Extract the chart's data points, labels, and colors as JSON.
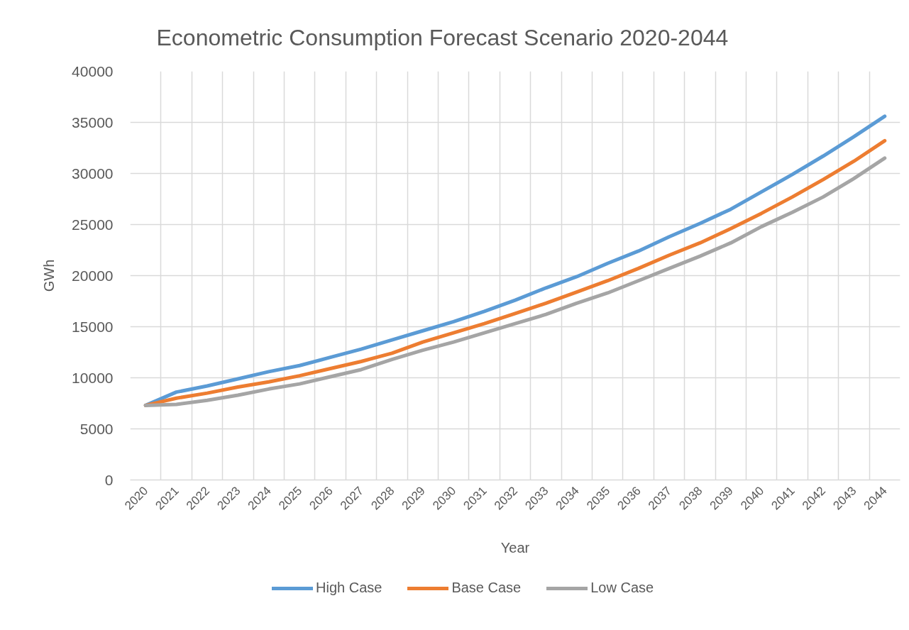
{
  "chart_data": {
    "type": "line",
    "title": "Econometric Consumption Forecast Scenario 2020-2044",
    "xlabel": "Year",
    "ylabel": "GWh",
    "categories": [
      "2020",
      "2021",
      "2022",
      "2023",
      "2024",
      "2025",
      "2026",
      "2027",
      "2028",
      "2029",
      "2030",
      "2031",
      "2032",
      "2033",
      "2034",
      "2035",
      "2036",
      "2037",
      "2038",
      "2039",
      "2040",
      "2041",
      "2042",
      "2043",
      "2044"
    ],
    "series": [
      {
        "name": "High Case",
        "color": "#5b9bd5",
        "values": [
          7300,
          8600,
          9200,
          9900,
          10600,
          11200,
          12000,
          12800,
          13700,
          14600,
          15500,
          16500,
          17600,
          18800,
          19900,
          21200,
          22400,
          23800,
          25100,
          26500,
          28200,
          29900,
          31700,
          33600,
          35600
        ]
      },
      {
        "name": "Base Case",
        "color": "#ed7d31",
        "values": [
          7300,
          8000,
          8500,
          9100,
          9600,
          10200,
          10900,
          11600,
          12400,
          13500,
          14400,
          15300,
          16300,
          17300,
          18400,
          19500,
          20700,
          22000,
          23200,
          24600,
          26100,
          27700,
          29400,
          31200,
          33200
        ]
      },
      {
        "name": "Low Case",
        "color": "#a5a5a5",
        "values": [
          7300,
          7400,
          7800,
          8300,
          8900,
          9400,
          10100,
          10800,
          11800,
          12700,
          13500,
          14400,
          15300,
          16200,
          17300,
          18300,
          19500,
          20700,
          21900,
          23200,
          24800,
          26200,
          27700,
          29500,
          31500
        ]
      }
    ],
    "ylim": [
      0,
      40000
    ],
    "yticks": [
      0,
      5000,
      10000,
      15000,
      20000,
      25000,
      30000,
      35000,
      40000
    ],
    "grid": true,
    "legend": "bottom",
    "line_style": "solid"
  }
}
